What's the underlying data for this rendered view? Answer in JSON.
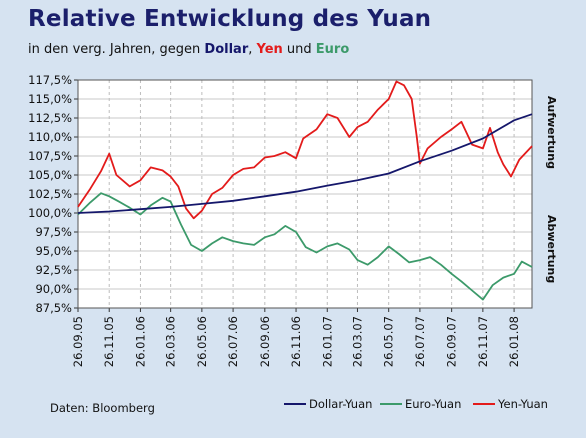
{
  "title": "Relative Entwicklung des Yuan",
  "subtitle": {
    "prefix": "in den verg. Jahren, gegen ",
    "dollar": "Dollar",
    "sep1": ", ",
    "yen": "Yen",
    "sep2": " und ",
    "euro": "Euro"
  },
  "colors": {
    "dollar": "#15176b",
    "euro": "#3c9a6a",
    "yen": "#e31b1b",
    "background": "#d6e3f1",
    "plot": "#ffffff"
  },
  "source": "Daten: Bloomberg",
  "side_labels": {
    "up": "Aufwertung",
    "down": "Abwertung"
  },
  "chart_data": {
    "type": "line",
    "ylim": [
      87.5,
      117.5
    ],
    "yticks": [
      87.5,
      90.0,
      92.5,
      95.0,
      97.5,
      100.0,
      102.5,
      105.0,
      107.5,
      110.0,
      112.5,
      115.0,
      117.5
    ],
    "ytick_labels": [
      "87,5%",
      "90,0%",
      "92,5%",
      "95,0%",
      "97,5%",
      "100,0%",
      "102,5%",
      "105,0%",
      "107,5%",
      "110,0%",
      "112,5%",
      "115,0%",
      "117,5%"
    ],
    "xlim": [
      "2005-09-26",
      "2008-03-01"
    ],
    "xticks": [
      "2005-09-26",
      "2005-11-26",
      "2006-01-26",
      "2006-03-26",
      "2006-05-26",
      "2006-07-26",
      "2006-09-26",
      "2006-11-26",
      "2007-01-26",
      "2007-03-26",
      "2007-05-26",
      "2007-07-26",
      "2007-09-26",
      "2007-11-26",
      "2008-01-26"
    ],
    "xtick_labels": [
      "26.09.05",
      "26.11.05",
      "26.01.06",
      "26.03.06",
      "26.05.06",
      "26.07.06",
      "26.09.06",
      "26.11.06",
      "26.01.07",
      "26.03.07",
      "26.05.07",
      "26.07.07",
      "26.09.07",
      "26.11.07",
      "26.01.08"
    ],
    "grid": true,
    "legend": "bottom-right",
    "series": [
      {
        "name": "Dollar-Yuan",
        "color": "#15176b",
        "points": [
          [
            "2005-09-26",
            100.0
          ],
          [
            "2005-11-26",
            100.2
          ],
          [
            "2006-01-26",
            100.5
          ],
          [
            "2006-03-26",
            100.8
          ],
          [
            "2006-05-26",
            101.2
          ],
          [
            "2006-07-26",
            101.6
          ],
          [
            "2006-09-26",
            102.2
          ],
          [
            "2006-11-26",
            102.8
          ],
          [
            "2007-01-26",
            103.6
          ],
          [
            "2007-03-26",
            104.3
          ],
          [
            "2007-05-26",
            105.2
          ],
          [
            "2007-07-26",
            106.8
          ],
          [
            "2007-09-26",
            108.2
          ],
          [
            "2007-11-26",
            109.8
          ],
          [
            "2008-01-26",
            112.2
          ],
          [
            "2008-03-01",
            113.0
          ]
        ]
      },
      {
        "name": "Euro-Yuan",
        "color": "#3c9a6a",
        "points": [
          [
            "2005-09-26",
            99.8
          ],
          [
            "2005-10-20",
            101.4
          ],
          [
            "2005-11-10",
            102.6
          ],
          [
            "2005-11-26",
            102.2
          ],
          [
            "2005-12-15",
            101.5
          ],
          [
            "2006-01-05",
            100.7
          ],
          [
            "2006-01-26",
            99.8
          ],
          [
            "2006-02-15",
            101.0
          ],
          [
            "2006-03-10",
            102.0
          ],
          [
            "2006-03-26",
            101.5
          ],
          [
            "2006-04-15",
            98.5
          ],
          [
            "2006-05-05",
            95.8
          ],
          [
            "2006-05-26",
            95.0
          ],
          [
            "2006-06-15",
            96.0
          ],
          [
            "2006-07-05",
            96.8
          ],
          [
            "2006-07-26",
            96.3
          ],
          [
            "2006-08-15",
            96.0
          ],
          [
            "2006-09-05",
            95.8
          ],
          [
            "2006-09-26",
            96.8
          ],
          [
            "2006-10-15",
            97.2
          ],
          [
            "2006-11-05",
            98.3
          ],
          [
            "2006-11-26",
            97.5
          ],
          [
            "2006-12-15",
            95.5
          ],
          [
            "2007-01-05",
            94.8
          ],
          [
            "2007-01-26",
            95.6
          ],
          [
            "2007-02-15",
            96.0
          ],
          [
            "2007-03-10",
            95.2
          ],
          [
            "2007-03-26",
            93.8
          ],
          [
            "2007-04-15",
            93.2
          ],
          [
            "2007-05-05",
            94.2
          ],
          [
            "2007-05-26",
            95.6
          ],
          [
            "2007-06-15",
            94.6
          ],
          [
            "2007-07-05",
            93.5
          ],
          [
            "2007-07-26",
            93.8
          ],
          [
            "2007-08-15",
            94.2
          ],
          [
            "2007-09-05",
            93.2
          ],
          [
            "2007-09-26",
            92.0
          ],
          [
            "2007-10-15",
            91.0
          ],
          [
            "2007-11-05",
            89.8
          ],
          [
            "2007-11-26",
            88.6
          ],
          [
            "2007-12-15",
            90.5
          ],
          [
            "2008-01-05",
            91.5
          ],
          [
            "2008-01-26",
            92.0
          ],
          [
            "2008-02-10",
            93.6
          ],
          [
            "2008-03-01",
            92.9
          ]
        ]
      },
      {
        "name": "Yen-Yuan",
        "color": "#e31b1b",
        "points": [
          [
            "2005-09-26",
            100.8
          ],
          [
            "2005-10-20",
            103.2
          ],
          [
            "2005-11-10",
            105.5
          ],
          [
            "2005-11-26",
            107.8
          ],
          [
            "2005-12-10",
            105.0
          ],
          [
            "2006-01-05",
            103.5
          ],
          [
            "2006-01-26",
            104.3
          ],
          [
            "2006-02-15",
            106.0
          ],
          [
            "2006-03-10",
            105.6
          ],
          [
            "2006-03-26",
            104.8
          ],
          [
            "2006-04-10",
            103.5
          ],
          [
            "2006-04-25",
            100.6
          ],
          [
            "2006-05-10",
            99.3
          ],
          [
            "2006-05-26",
            100.3
          ],
          [
            "2006-06-15",
            102.5
          ],
          [
            "2006-07-05",
            103.3
          ],
          [
            "2006-07-26",
            105.0
          ],
          [
            "2006-08-15",
            105.8
          ],
          [
            "2006-09-05",
            106.0
          ],
          [
            "2006-09-26",
            107.3
          ],
          [
            "2006-10-15",
            107.5
          ],
          [
            "2006-11-05",
            108.0
          ],
          [
            "2006-11-26",
            107.2
          ],
          [
            "2006-12-10",
            109.8
          ],
          [
            "2007-01-05",
            111.0
          ],
          [
            "2007-01-26",
            113.0
          ],
          [
            "2007-02-15",
            112.5
          ],
          [
            "2007-03-10",
            110.0
          ],
          [
            "2007-03-26",
            111.3
          ],
          [
            "2007-04-15",
            112.0
          ],
          [
            "2007-05-05",
            113.6
          ],
          [
            "2007-05-26",
            115.0
          ],
          [
            "2007-06-10",
            117.3
          ],
          [
            "2007-06-25",
            116.8
          ],
          [
            "2007-07-10",
            115.0
          ],
          [
            "2007-07-20",
            110.0
          ],
          [
            "2007-07-26",
            106.5
          ],
          [
            "2007-08-10",
            108.5
          ],
          [
            "2007-09-05",
            110.0
          ],
          [
            "2007-09-26",
            111.0
          ],
          [
            "2007-10-15",
            112.0
          ],
          [
            "2007-11-05",
            109.0
          ],
          [
            "2007-11-26",
            108.5
          ],
          [
            "2007-12-10",
            111.2
          ],
          [
            "2007-12-25",
            108.0
          ],
          [
            "2008-01-05",
            106.4
          ],
          [
            "2008-01-20",
            104.8
          ],
          [
            "2008-02-05",
            107.0
          ],
          [
            "2008-03-01",
            108.8
          ]
        ]
      }
    ]
  }
}
